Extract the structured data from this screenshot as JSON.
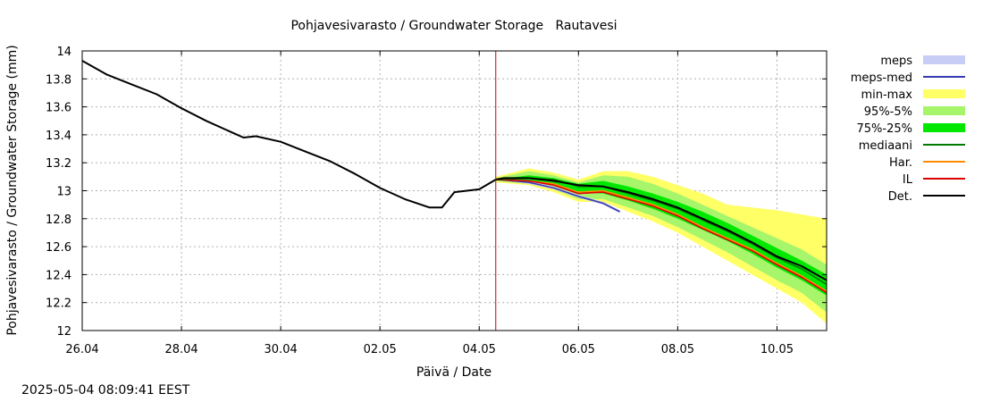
{
  "chart_data": {
    "type": "area",
    "title": "Pohjavesivarasto / Groundwater Storage   Rautavesi",
    "xlabel": "Päivä / Date",
    "ylabel": "Pohjavesivarasto / Groundwater Storage (mm)",
    "x_start": "2025-04-26",
    "x_end": "2025-05-11",
    "forecast_start": "2025-05-04T08:00",
    "ylim": [
      12,
      14
    ],
    "yticks": [
      "12",
      "12.2",
      "12.4",
      "12.6",
      "12.8",
      "13",
      "13.2",
      "13.4",
      "13.6",
      "13.8",
      "14"
    ],
    "xticks": [
      {
        "date": "2025-04-26",
        "label": "26.04"
      },
      {
        "date": "2025-04-28",
        "label": "28.04"
      },
      {
        "date": "2025-04-30",
        "label": "30.04"
      },
      {
        "date": "2025-05-02",
        "label": "02.05"
      },
      {
        "date": "2025-05-04",
        "label": "04.05"
      },
      {
        "date": "2025-05-06",
        "label": "06.05"
      },
      {
        "date": "2025-05-08",
        "label": "08.05"
      },
      {
        "date": "2025-05-10",
        "label": "10.05"
      }
    ],
    "grid": true,
    "legend_position": "right",
    "legend": [
      {
        "label": "meps",
        "kind": "band",
        "color": "#c8cdf5"
      },
      {
        "label": "meps-med",
        "kind": "line",
        "color": "#3a3ab0"
      },
      {
        "label": "min-max",
        "kind": "band",
        "color": "#ffff66"
      },
      {
        "label": "95%-5%",
        "kind": "band",
        "color": "#a6f56a"
      },
      {
        "label": "75%-25%",
        "kind": "band",
        "color": "#00e800"
      },
      {
        "label": "mediaani",
        "kind": "line",
        "color": "#007a00"
      },
      {
        "label": "Har.",
        "kind": "line",
        "color": "#ff8c00"
      },
      {
        "label": "IL",
        "kind": "line",
        "color": "#dd0000"
      },
      {
        "label": "Det.",
        "kind": "line",
        "color": "#000000"
      }
    ],
    "series": [
      {
        "name": "Det.",
        "x": [
          "2025-04-26",
          "2025-04-26T12:00",
          "2025-04-27",
          "2025-04-27T12:00",
          "2025-04-28",
          "2025-04-28T12:00",
          "2025-04-29",
          "2025-04-29T06:00",
          "2025-04-29T12:00",
          "2025-04-30",
          "2025-04-30T12:00",
          "2025-05-01",
          "2025-05-01T12:00",
          "2025-05-02",
          "2025-05-02T12:00",
          "2025-05-03",
          "2025-05-03T06:00",
          "2025-05-03T12:00",
          "2025-05-04",
          "2025-05-04T08:00",
          "2025-05-04T12:00",
          "2025-05-05",
          "2025-05-05T12:00",
          "2025-05-06",
          "2025-05-06T12:00",
          "2025-05-07",
          "2025-05-07T12:00",
          "2025-05-08",
          "2025-05-08T12:00",
          "2025-05-09",
          "2025-05-09T12:00",
          "2025-05-10",
          "2025-05-10T12:00",
          "2025-05-11"
        ],
        "y": [
          13.93,
          13.83,
          13.76,
          13.69,
          13.59,
          13.5,
          13.42,
          13.38,
          13.39,
          13.35,
          13.28,
          13.21,
          13.12,
          13.02,
          12.94,
          12.88,
          12.88,
          12.99,
          13.01,
          13.08,
          13.09,
          13.09,
          13.07,
          13.04,
          13.03,
          12.99,
          12.94,
          12.88,
          12.8,
          12.72,
          12.63,
          12.53,
          12.46,
          12.36
        ]
      },
      {
        "name": "mediaani",
        "x": [
          "2025-05-04T08:00",
          "2025-05-05",
          "2025-05-05T12:00",
          "2025-05-06",
          "2025-05-06T12:00",
          "2025-05-07",
          "2025-05-07T12:00",
          "2025-05-08",
          "2025-05-08T12:00",
          "2025-05-09",
          "2025-05-09T12:00",
          "2025-05-10",
          "2025-05-10T12:00",
          "2025-05-11"
        ],
        "y": [
          13.08,
          13.09,
          13.08,
          13.03,
          13.03,
          12.98,
          12.93,
          12.87,
          12.79,
          12.71,
          12.62,
          12.52,
          12.44,
          12.33
        ]
      },
      {
        "name": "IL",
        "x": [
          "2025-05-04T08:00",
          "2025-05-05",
          "2025-05-05T12:00",
          "2025-05-06",
          "2025-05-06T12:00",
          "2025-05-07",
          "2025-05-07T12:00",
          "2025-05-08",
          "2025-05-08T12:00",
          "2025-05-09",
          "2025-05-09T12:00",
          "2025-05-10",
          "2025-05-10T12:00",
          "2025-05-11"
        ],
        "y": [
          13.08,
          13.07,
          13.04,
          12.98,
          12.99,
          12.94,
          12.89,
          12.82,
          12.73,
          12.65,
          12.57,
          12.47,
          12.38,
          12.27
        ]
      },
      {
        "name": "Har.",
        "x": [
          "2025-05-04T08:00",
          "2025-05-05",
          "2025-05-05T12:00",
          "2025-05-06",
          "2025-05-06T12:00",
          "2025-05-07",
          "2025-05-07T12:00",
          "2025-05-08",
          "2025-05-08T12:00",
          "2025-05-09",
          "2025-05-09T12:00",
          "2025-05-10",
          "2025-05-10T12:00",
          "2025-05-11"
        ],
        "y": [
          13.08,
          13.07,
          13.05,
          12.99,
          13.0,
          12.95,
          12.9,
          12.83,
          12.74,
          12.66,
          12.58,
          12.48,
          12.39,
          12.28
        ]
      },
      {
        "name": "meps-med",
        "x": [
          "2025-05-04T08:00",
          "2025-05-05",
          "2025-05-05T12:00",
          "2025-05-06",
          "2025-05-06T12:00",
          "2025-05-06T20:00"
        ],
        "y": [
          13.08,
          13.06,
          13.02,
          12.96,
          12.91,
          12.85
        ]
      }
    ],
    "bands": [
      {
        "name": "min-max",
        "x": [
          "2025-05-04T08:00",
          "2025-05-05",
          "2025-05-05T12:00",
          "2025-05-06",
          "2025-05-06T12:00",
          "2025-05-07",
          "2025-05-07T12:00",
          "2025-05-08",
          "2025-05-08T12:00",
          "2025-05-09",
          "2025-05-09T12:00",
          "2025-05-10",
          "2025-05-10T12:00",
          "2025-05-11"
        ],
        "upper": [
          13.1,
          13.16,
          13.13,
          13.08,
          13.14,
          13.14,
          13.1,
          13.04,
          12.98,
          12.9,
          12.88,
          12.86,
          12.83,
          12.8
        ],
        "lower": [
          13.06,
          13.04,
          12.99,
          12.92,
          12.92,
          12.85,
          12.78,
          12.7,
          12.6,
          12.5,
          12.4,
          12.3,
          12.2,
          12.05
        ]
      },
      {
        "name": "95%-5%",
        "x": [
          "2025-05-04T08:00",
          "2025-05-05",
          "2025-05-05T12:00",
          "2025-05-06",
          "2025-05-06T12:00",
          "2025-05-07",
          "2025-05-07T12:00",
          "2025-05-08",
          "2025-05-08T12:00",
          "2025-05-09",
          "2025-05-09T12:00",
          "2025-05-10",
          "2025-05-10T12:00",
          "2025-05-11"
        ],
        "upper": [
          13.09,
          13.14,
          13.11,
          13.06,
          13.11,
          13.1,
          13.05,
          12.98,
          12.9,
          12.82,
          12.74,
          12.66,
          12.58,
          12.47
        ],
        "lower": [
          13.07,
          13.05,
          13.01,
          12.94,
          12.94,
          12.88,
          12.82,
          12.74,
          12.65,
          12.56,
          12.46,
          12.36,
          12.27,
          12.13
        ]
      },
      {
        "name": "75%-25%",
        "x": [
          "2025-05-04T08:00",
          "2025-05-05",
          "2025-05-05T12:00",
          "2025-05-06",
          "2025-05-06T12:00",
          "2025-05-07",
          "2025-05-07T12:00",
          "2025-05-08",
          "2025-05-08T12:00",
          "2025-05-09",
          "2025-05-09T12:00",
          "2025-05-10",
          "2025-05-10T12:00",
          "2025-05-11"
        ],
        "upper": [
          13.08,
          13.11,
          13.09,
          13.05,
          13.07,
          13.03,
          12.98,
          12.92,
          12.85,
          12.77,
          12.68,
          12.59,
          12.5,
          12.4
        ],
        "lower": [
          13.08,
          13.07,
          13.04,
          12.99,
          12.98,
          12.93,
          12.87,
          12.8,
          12.72,
          12.64,
          12.55,
          12.45,
          12.36,
          12.25
        ]
      },
      {
        "name": "meps",
        "x": [
          "2025-05-04T08:00",
          "2025-05-05",
          "2025-05-05T12:00",
          "2025-05-06",
          "2025-05-06T12:00",
          "2025-05-06T20:00"
        ],
        "upper": [
          13.08,
          13.07,
          13.03,
          12.97,
          12.92,
          12.86
        ],
        "lower": [
          13.08,
          13.05,
          13.01,
          12.95,
          12.9,
          12.84
        ]
      }
    ]
  },
  "timestamp": "2025-05-04 08:09:41 EEST"
}
